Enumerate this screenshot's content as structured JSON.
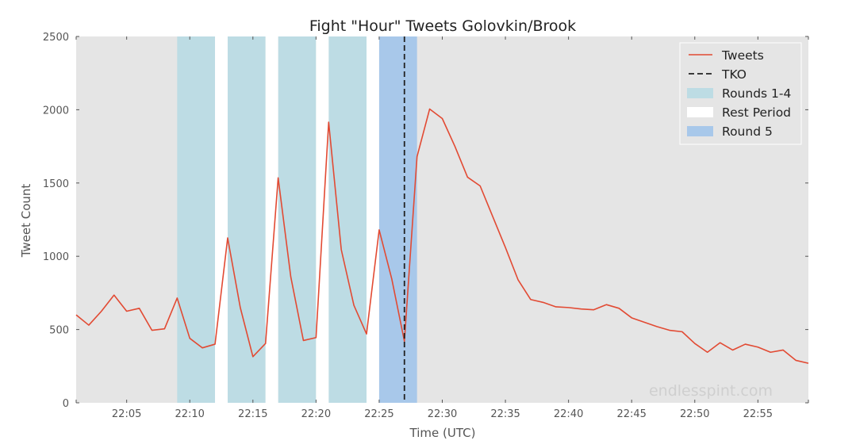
{
  "chart_data": {
    "type": "line",
    "title": "Fight \"Hour\" Tweets Golovkin/Brook",
    "xlabel": "Time (UTC)",
    "ylabel": "Tweet Count",
    "watermark": "endlesspint.com",
    "xlim": [
      "22:01",
      "22:59"
    ],
    "ylim": [
      0,
      2500
    ],
    "y_ticks": [
      0,
      500,
      1000,
      1500,
      2000,
      2500
    ],
    "x_ticks": [
      "22:05",
      "22:10",
      "22:15",
      "22:20",
      "22:25",
      "22:30",
      "22:35",
      "22:40",
      "22:45",
      "22:50",
      "22:55"
    ],
    "grid": false,
    "legend_position": "top-right",
    "series": [
      {
        "name": "Tweets",
        "color": "#e24a33",
        "x": [
          "22:01",
          "22:02",
          "22:03",
          "22:04",
          "22:05",
          "22:06",
          "22:07",
          "22:08",
          "22:09",
          "22:10",
          "22:11",
          "22:12",
          "22:13",
          "22:14",
          "22:15",
          "22:16",
          "22:17",
          "22:18",
          "22:19",
          "22:20",
          "22:21",
          "22:22",
          "22:23",
          "22:24",
          "22:25",
          "22:26",
          "22:27",
          "22:28",
          "22:29",
          "22:30",
          "22:31",
          "22:32",
          "22:33",
          "22:34",
          "22:35",
          "22:36",
          "22:37",
          "22:38",
          "22:39",
          "22:40",
          "22:41",
          "22:42",
          "22:43",
          "22:44",
          "22:45",
          "22:46",
          "22:47",
          "22:48",
          "22:49",
          "22:50",
          "22:51",
          "22:52",
          "22:53",
          "22:54",
          "22:55",
          "22:56",
          "22:57",
          "22:58",
          "22:59"
        ],
        "values": [
          600,
          530,
          625,
          735,
          625,
          645,
          495,
          505,
          715,
          440,
          375,
          400,
          1125,
          650,
          315,
          405,
          1535,
          860,
          425,
          445,
          1915,
          1045,
          665,
          470,
          1180,
          845,
          420,
          1680,
          2005,
          1940,
          1750,
          1540,
          1480,
          1270,
          1060,
          840,
          705,
          685,
          655,
          650,
          640,
          635,
          670,
          645,
          580,
          550,
          520,
          495,
          485,
          405,
          345,
          410,
          360,
          400,
          380,
          345,
          360,
          290,
          270
        ]
      }
    ],
    "vlines": [
      {
        "name": "TKO",
        "x": "22:27",
        "color": "#222222",
        "style": "dashed"
      }
    ],
    "spans": [
      {
        "name": "Rounds 1-4",
        "color": "#bddce4",
        "ranges": [
          [
            "22:09",
            "22:12"
          ],
          [
            "22:13",
            "22:16"
          ],
          [
            "22:17",
            "22:20"
          ],
          [
            "22:21",
            "22:24"
          ]
        ]
      },
      {
        "name": "Rest Period",
        "color": "#ffffff",
        "ranges": [
          [
            "22:12",
            "22:13"
          ],
          [
            "22:16",
            "22:17"
          ],
          [
            "22:20",
            "22:21"
          ],
          [
            "22:24",
            "22:25"
          ]
        ]
      },
      {
        "name": "Round 5",
        "color": "#a8c8ea",
        "ranges": [
          [
            "22:25",
            "22:28"
          ]
        ]
      }
    ],
    "plot_background": "#e5e5e5"
  }
}
